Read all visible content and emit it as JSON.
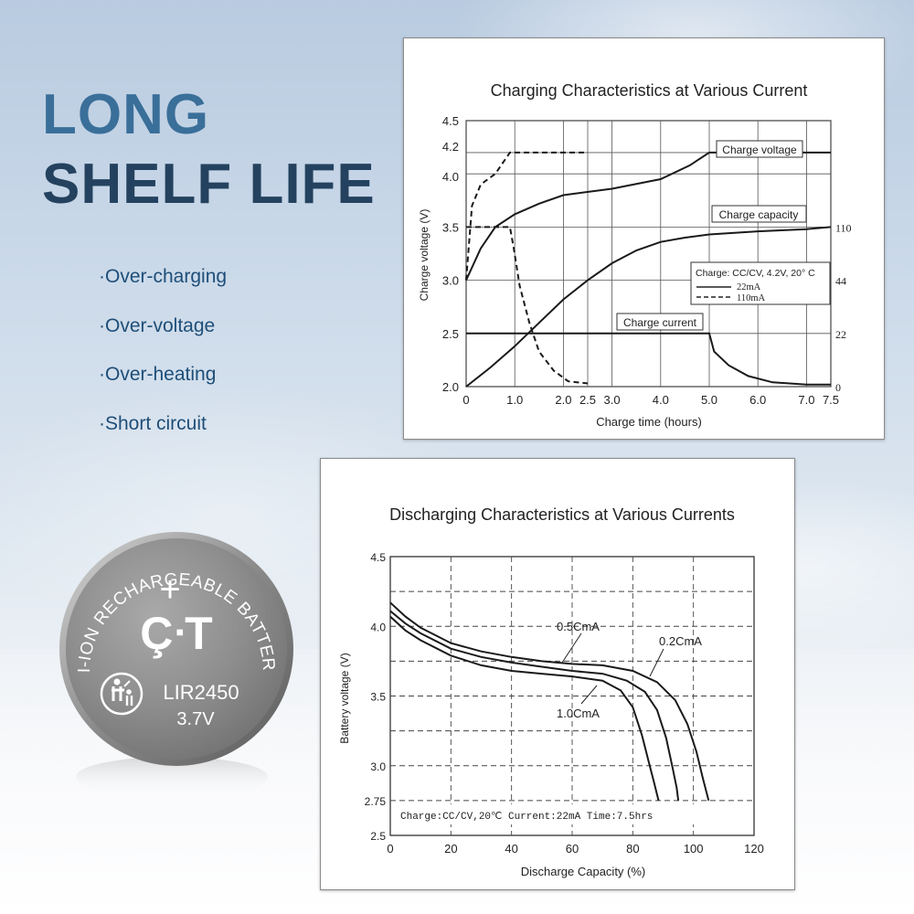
{
  "headline": {
    "line1": "LONG",
    "line2": "SHELF LIFE"
  },
  "features": [
    "·Over-charging",
    "·Over-voltage",
    "·Over-heating",
    "·Short circuit"
  ],
  "battery": {
    "brand_mark": "ÇᐧT",
    "arc_text": "LI-ION RECHARGEABLE BATTERY",
    "plus_sign": "+",
    "model": "LIR2450",
    "voltage": "3.7V",
    "recycle_icon": "family-disposal-icon"
  },
  "chart_data": [
    {
      "type": "line",
      "title": "Charging Characteristics at Various Current",
      "xlabel": "Charge time (hours)",
      "ylabel": "Charge voltage (V)",
      "x_ticks": [
        "0",
        "1.0",
        "2.0",
        "2.5",
        "3.0",
        "4.0",
        "5.0",
        "6.0",
        "7.0",
        "7.5"
      ],
      "x_tick_values": [
        0,
        1,
        2,
        2.5,
        3,
        4,
        5,
        6,
        7,
        7.5
      ],
      "y_ticks": [
        "2.0",
        "2.5",
        "3.0",
        "3.5",
        "4.0",
        "4.2",
        "4.5"
      ],
      "y_tick_values": [
        2.0,
        2.5,
        3.0,
        3.5,
        4.0,
        4.2,
        4.5
      ],
      "y2_ticks": [
        "0",
        "22",
        "44",
        "110"
      ],
      "y2_tick_levels": [
        2.0,
        2.5,
        3.0,
        3.5
      ],
      "xlim": [
        0,
        7.5
      ],
      "ylim": [
        2.0,
        4.5
      ],
      "grid": true,
      "legend": {
        "title": "Charge: CC/CV, 4.2V, 20° C",
        "entries": [
          {
            "label": "22mA",
            "style": "solid"
          },
          {
            "label": "110mA",
            "style": "dashed"
          }
        ]
      },
      "annotations": [
        "Charge voltage",
        "Charge capacity",
        "Charge current"
      ],
      "series": [
        {
          "name": "22mA",
          "style": "solid",
          "curves": [
            {
              "points": [
                [
                  0,
                  3.0
                ],
                [
                  0.3,
                  3.3
                ],
                [
                  0.6,
                  3.5
                ],
                [
                  1.0,
                  3.62
                ],
                [
                  1.5,
                  3.72
                ],
                [
                  2.0,
                  3.8
                ],
                [
                  3.0,
                  3.86
                ],
                [
                  4.0,
                  3.95
                ],
                [
                  4.6,
                  4.08
                ],
                [
                  5.0,
                  4.2
                ],
                [
                  7.5,
                  4.2
                ]
              ]
            },
            {
              "points": [
                [
                  0,
                  2.0
                ],
                [
                  0.5,
                  2.18
                ],
                [
                  1.0,
                  2.38
                ],
                [
                  1.5,
                  2.6
                ],
                [
                  2.0,
                  2.82
                ],
                [
                  2.5,
                  3.0
                ],
                [
                  3.0,
                  3.16
                ],
                [
                  3.5,
                  3.28
                ],
                [
                  4.0,
                  3.36
                ],
                [
                  4.5,
                  3.4
                ],
                [
                  5.0,
                  3.43
                ],
                [
                  6.0,
                  3.46
                ],
                [
                  7.0,
                  3.48
                ],
                [
                  7.5,
                  3.5
                ]
              ]
            },
            {
              "points": [
                [
                  0,
                  2.5
                ],
                [
                  5.0,
                  2.5
                ],
                [
                  5.1,
                  2.33
                ],
                [
                  5.4,
                  2.2
                ],
                [
                  5.8,
                  2.1
                ],
                [
                  6.3,
                  2.04
                ],
                [
                  7.0,
                  2.02
                ],
                [
                  7.5,
                  2.02
                ]
              ]
            }
          ]
        },
        {
          "name": "110mA",
          "style": "dashed",
          "curves": [
            {
              "points": [
                [
                  0,
                  3.0
                ],
                [
                  0.12,
                  3.7
                ],
                [
                  0.3,
                  3.9
                ],
                [
                  0.6,
                  4.0
                ],
                [
                  0.9,
                  4.2
                ],
                [
                  2.5,
                  4.2
                ]
              ]
            },
            {
              "points": [
                [
                  0,
                  3.5
                ],
                [
                  0.9,
                  3.5
                ],
                [
                  0.98,
                  3.3
                ],
                [
                  1.1,
                  2.95
                ],
                [
                  1.3,
                  2.6
                ],
                [
                  1.5,
                  2.33
                ],
                [
                  1.8,
                  2.15
                ],
                [
                  2.1,
                  2.05
                ],
                [
                  2.5,
                  2.03
                ]
              ]
            }
          ]
        }
      ]
    },
    {
      "type": "line",
      "title": "Discharging Characteristics at Various Currents",
      "xlabel": "Discharge Capacity (%)",
      "ylabel": "Battery voltage (V)",
      "x_ticks": [
        "0",
        "20",
        "40",
        "60",
        "80",
        "100",
        "120"
      ],
      "x_tick_values": [
        0,
        20,
        40,
        60,
        80,
        100,
        120
      ],
      "y_ticks": [
        "2.5",
        "2.75",
        "3.0",
        "3.5",
        "4.0",
        "4.5"
      ],
      "y_tick_values": [
        2.5,
        2.75,
        3.0,
        3.5,
        4.0,
        4.5
      ],
      "xlim": [
        0,
        120
      ],
      "ylim": [
        2.5,
        4.5
      ],
      "grid": true,
      "note": "Charge:CC/CV,20℃ Current:22mA Time:7.5hrs",
      "series": [
        {
          "name": "0.2CmA",
          "points": [
            [
              0,
              4.17
            ],
            [
              5,
              4.07
            ],
            [
              10,
              3.99
            ],
            [
              20,
              3.88
            ],
            [
              30,
              3.82
            ],
            [
              40,
              3.78
            ],
            [
              50,
              3.75
            ],
            [
              60,
              3.73
            ],
            [
              70,
              3.72
            ],
            [
              80,
              3.68
            ],
            [
              88,
              3.6
            ],
            [
              94,
              3.47
            ],
            [
              98,
              3.3
            ],
            [
              101,
              3.1
            ],
            [
              103,
              2.92
            ],
            [
              105,
              2.75
            ]
          ]
        },
        {
          "name": "0.5CmA",
          "points": [
            [
              0,
              4.11
            ],
            [
              5,
              4.02
            ],
            [
              10,
              3.95
            ],
            [
              20,
              3.84
            ],
            [
              30,
              3.78
            ],
            [
              40,
              3.74
            ],
            [
              50,
              3.71
            ],
            [
              60,
              3.68
            ],
            [
              70,
              3.66
            ],
            [
              78,
              3.61
            ],
            [
              84,
              3.53
            ],
            [
              88,
              3.4
            ],
            [
              91,
              3.2
            ],
            [
              93,
              3.0
            ],
            [
              94.5,
              2.84
            ],
            [
              95,
              2.75
            ]
          ]
        },
        {
          "name": "1.0CmA",
          "points": [
            [
              0,
              4.07
            ],
            [
              5,
              3.97
            ],
            [
              10,
              3.9
            ],
            [
              20,
              3.79
            ],
            [
              30,
              3.72
            ],
            [
              40,
              3.68
            ],
            [
              50,
              3.66
            ],
            [
              60,
              3.64
            ],
            [
              70,
              3.61
            ],
            [
              76,
              3.54
            ],
            [
              80,
              3.42
            ],
            [
              83,
              3.22
            ],
            [
              85,
              3.05
            ],
            [
              87,
              2.88
            ],
            [
              88.5,
              2.75
            ]
          ]
        }
      ]
    }
  ]
}
